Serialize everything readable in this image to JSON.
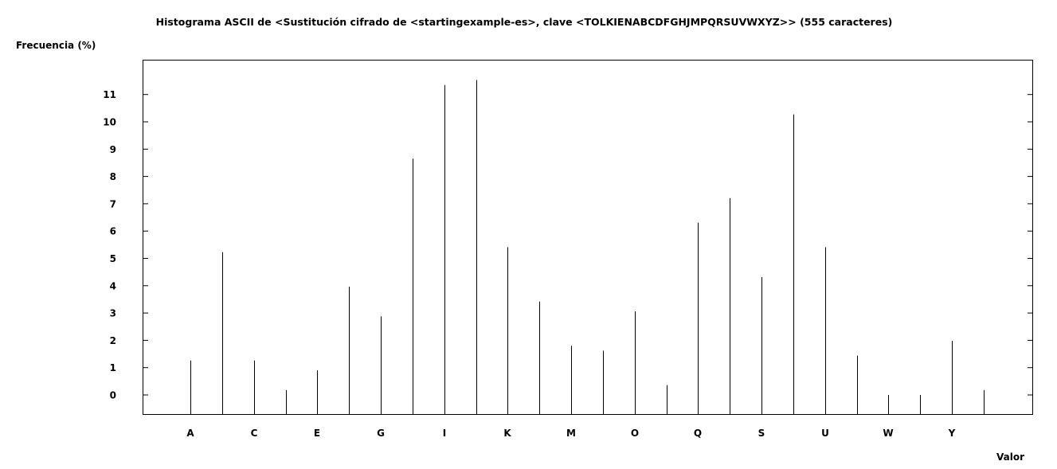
{
  "chart_data": {
    "type": "bar",
    "title": "Histograma ASCII de <Sustitución cifrado de <startingexample-es>, clave <TOLKIENABCDFGHJMPQRSUVWXYZ>> (555 caracteres)",
    "xlabel": "Valor",
    "ylabel": "Frecuencia (%)",
    "categories": [
      "A",
      "B",
      "C",
      "D",
      "E",
      "F",
      "G",
      "H",
      "I",
      "J",
      "K",
      "L",
      "M",
      "N",
      "O",
      "P",
      "Q",
      "R",
      "S",
      "T",
      "U",
      "V",
      "W",
      "X",
      "Y",
      "Z"
    ],
    "x_tick_labels": [
      "A",
      "C",
      "E",
      "G",
      "I",
      "K",
      "M",
      "O",
      "Q",
      "S",
      "U",
      "W",
      "Y"
    ],
    "values": [
      1.26,
      5.23,
      1.26,
      0.18,
      0.9,
      3.96,
      2.88,
      8.65,
      11.35,
      11.53,
      5.41,
      3.42,
      1.8,
      1.62,
      3.06,
      0.36,
      6.31,
      7.21,
      4.32,
      10.27,
      5.41,
      1.44,
      0.0,
      0.0,
      1.98,
      0.18
    ],
    "y_ticks": [
      0,
      1,
      2,
      3,
      4,
      5,
      6,
      7,
      8,
      9,
      10,
      11
    ],
    "ylim": [
      -0.7,
      12.5
    ],
    "grid": false,
    "legend": "none"
  }
}
